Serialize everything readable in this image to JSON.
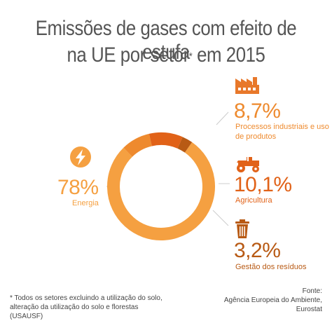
{
  "title": {
    "line1": "Emissões de gases com efeito de estufa",
    "line2_pre": "na UE por setor",
    "line2_star": "*",
    "line2_post": " em 2015"
  },
  "colors": {
    "energy": "#F5A041",
    "industry": "#EE8A2E",
    "agriculture": "#E16218",
    "waste": "#B85A14",
    "text": "#555555"
  },
  "chart_data": {
    "type": "pie",
    "series": [
      {
        "name": "Energia",
        "value": 78,
        "label": "78%",
        "icon": "lightning-icon"
      },
      {
        "name": "Processos industriais e uso de produtos",
        "value": 8.7,
        "label": "8,7%",
        "icon": "factory-icon"
      },
      {
        "name": "Agricultura",
        "value": 10.1,
        "label": "10,1%",
        "icon": "tractor-icon"
      },
      {
        "name": "Gestão dos resíduos",
        "value": 3.2,
        "label": "3,2%",
        "icon": "trash-bin-icon"
      }
    ]
  },
  "labels": {
    "energy_pct": "78%",
    "energy_name": "Energia",
    "industry_pct": "8,7%",
    "industry_name_l1": "Processos industriais e uso",
    "industry_name_l2": "de produtos",
    "agriculture_pct": "10,1%",
    "agriculture_name": "Agricultura",
    "waste_pct": "3,2%",
    "waste_name": "Gestão dos resíduos"
  },
  "footnote": {
    "line1": "* Todos os setores excluindo a utilização do solo,",
    "line2": "alteração da utilização do solo e florestas (USAUSF)"
  },
  "source": {
    "line1": "Fonte:",
    "line2": "Agência Europeia do Ambiente,",
    "line3": "Eurostat"
  }
}
